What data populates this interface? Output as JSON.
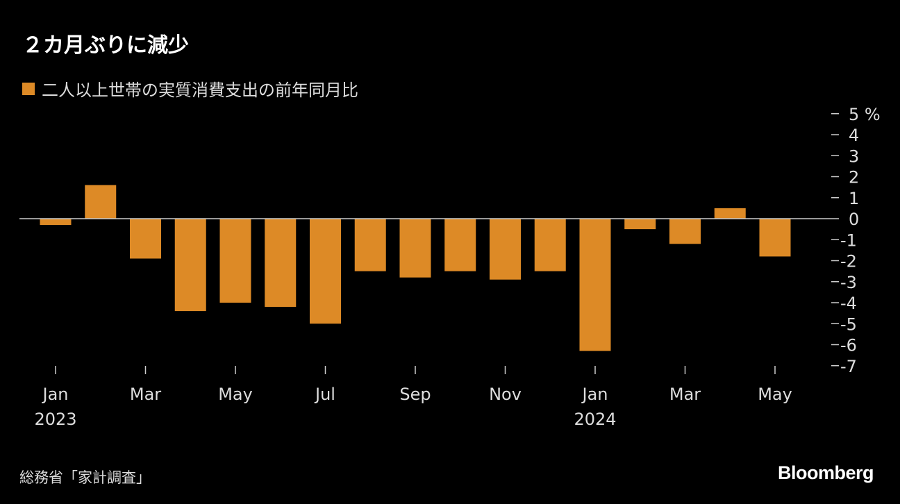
{
  "title": "２カ月ぶりに減少",
  "source": "総務省「家計調査」",
  "logo": "Bloomberg",
  "chart_data": {
    "type": "bar",
    "title": "２カ月ぶりに減少",
    "series": [
      {
        "name": "二人以上世帯の実質消費支出の前年同月比",
        "color": "#dd8a26",
        "values": [
          -0.3,
          1.6,
          -1.9,
          -4.4,
          -4.0,
          -4.2,
          -5.0,
          -2.5,
          -2.8,
          -2.5,
          -2.9,
          -2.5,
          -6.3,
          -0.5,
          -1.2,
          0.5,
          -1.8
        ]
      }
    ],
    "categories": [
      "2023-01",
      "2023-02",
      "2023-03",
      "2023-04",
      "2023-05",
      "2023-06",
      "2023-07",
      "2023-08",
      "2023-09",
      "2023-10",
      "2023-11",
      "2023-12",
      "2024-01",
      "2024-02",
      "2024-03",
      "2024-04",
      "2024-05"
    ],
    "x_tick_labels": [
      {
        "index": 0,
        "label": "Jan",
        "year": "2023"
      },
      {
        "index": 2,
        "label": "Mar"
      },
      {
        "index": 4,
        "label": "May"
      },
      {
        "index": 6,
        "label": "Jul"
      },
      {
        "index": 8,
        "label": "Sep"
      },
      {
        "index": 10,
        "label": "Nov"
      },
      {
        "index": 12,
        "label": "Jan",
        "year": "2024"
      },
      {
        "index": 14,
        "label": "Mar"
      },
      {
        "index": 16,
        "label": "May"
      }
    ],
    "y_ticks": [
      "5 %",
      "4",
      "3",
      "2",
      "1",
      "0",
      "-1",
      "-2",
      "-3",
      "-4",
      "-5",
      "-6",
      "-7"
    ],
    "ylim": [
      -7,
      5
    ],
    "y_axis_position": "right",
    "legend_position": "top-left",
    "grid": false,
    "xlabel": "",
    "ylabel": ""
  }
}
